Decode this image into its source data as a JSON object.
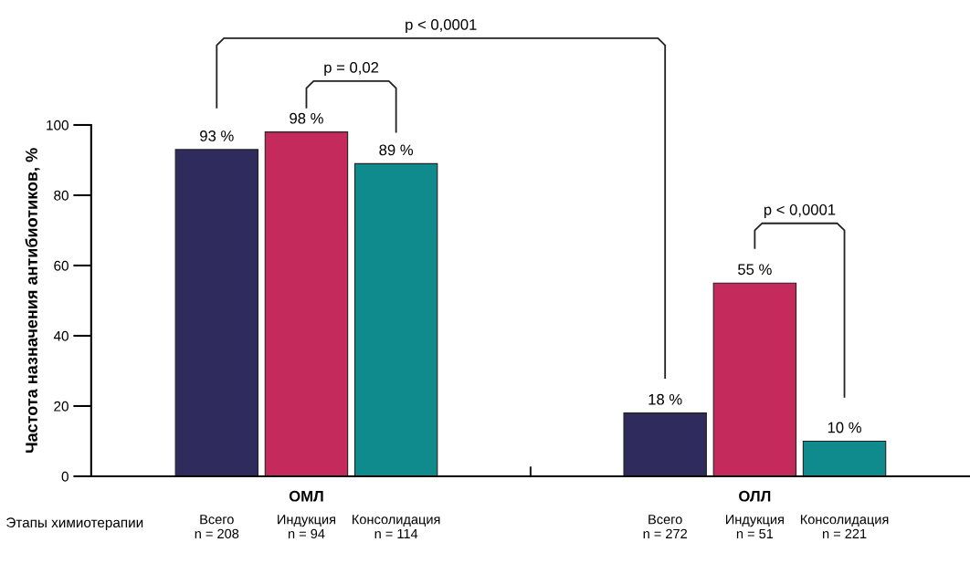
{
  "chart_data": {
    "type": "bar",
    "ylabel": "Частота назначения антибиотиков, %",
    "categories": [
      "Всего\nn = 208",
      "Индукция\nn = 94",
      "Консолидация\nn = 114",
      null,
      null,
      "Всего\nn = 272",
      "Индукция\nn = 51",
      "Консолидация\nn = 221"
    ],
    "values": [
      93,
      98,
      89,
      null,
      null,
      18,
      55,
      10
    ],
    "colors": [
      "#2f2b5c",
      "#c42a5c",
      "#0f8b8d",
      "#ffffff",
      "#ffffff",
      "#2f2b5c",
      "#c42a5c",
      "#0f8b8d"
    ],
    "value_labels": [
      "93 %",
      "98 %",
      "89 %",
      null,
      null,
      "18 %",
      "55 %",
      "10 %"
    ],
    "ylim": [
      0,
      100
    ],
    "yticks": [
      0,
      20,
      40,
      60,
      80,
      100
    ],
    "annotations": [
      "ОМЛ",
      "ОЛЛ",
      "Этапы химиотерапии",
      "p < 0,0001",
      "p = 0,02",
      "p < 0,0001"
    ],
    "grid": false,
    "legend": false
  }
}
